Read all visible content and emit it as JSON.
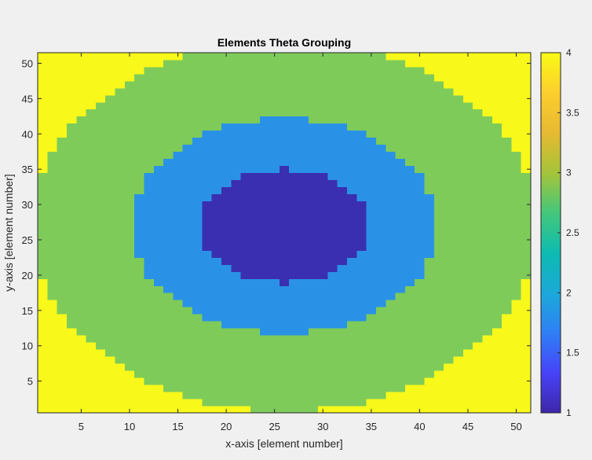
{
  "chart_data": {
    "type": "heatmap",
    "title": "Elements Theta Grouping",
    "xlabel": "x-axis [element number]",
    "ylabel": "y-axis [element number]",
    "grid": false,
    "x": {
      "range": [
        0.5,
        51.5
      ],
      "ticks": [
        5,
        10,
        15,
        20,
        25,
        30,
        35,
        40,
        45,
        50
      ],
      "tick_labels": [
        "5",
        "10",
        "15",
        "20",
        "25",
        "30",
        "35",
        "40",
        "45",
        "50"
      ]
    },
    "y": {
      "range": [
        0.5,
        51.5
      ],
      "ticks": [
        5,
        10,
        15,
        20,
        25,
        30,
        35,
        40,
        45,
        50
      ],
      "tick_labels": [
        "5",
        "10",
        "15",
        "20",
        "25",
        "30",
        "35",
        "40",
        "45",
        "50"
      ]
    },
    "grid_size": {
      "nx": 51,
      "ny": 51
    },
    "center": {
      "x": 26,
      "y": 27
    },
    "groups": [
      {
        "value": 1,
        "color": "#3a2fb0",
        "radius_x": 8.8,
        "radius_y": 8.0
      },
      {
        "value": 2,
        "color": "#2a92e6",
        "radius_x": 15.8,
        "radius_y": 15.2
      },
      {
        "value": 3,
        "color": "#7ecb5a",
        "radius_x": 26.0,
        "radius_y": 26.3
      },
      {
        "value": 4,
        "color": "#f8f81a",
        "radius_x": null,
        "radius_y": null
      }
    ],
    "colorbar": {
      "placement": "right",
      "range": [
        1,
        4
      ],
      "ticks": [
        1,
        1.5,
        2,
        2.5,
        3,
        3.5,
        4
      ],
      "tick_labels": [
        "1",
        "1.5",
        "2",
        "2.5",
        "3",
        "3.5",
        "4"
      ],
      "colormap": "parula",
      "colormap_stops": [
        "#3e26a8",
        "#4743f8",
        "#2f7ff5",
        "#1ca9d9",
        "#0dbbb1",
        "#45c77a",
        "#a6c43a",
        "#e7b932",
        "#fcce2e",
        "#f9fb15"
      ]
    }
  }
}
